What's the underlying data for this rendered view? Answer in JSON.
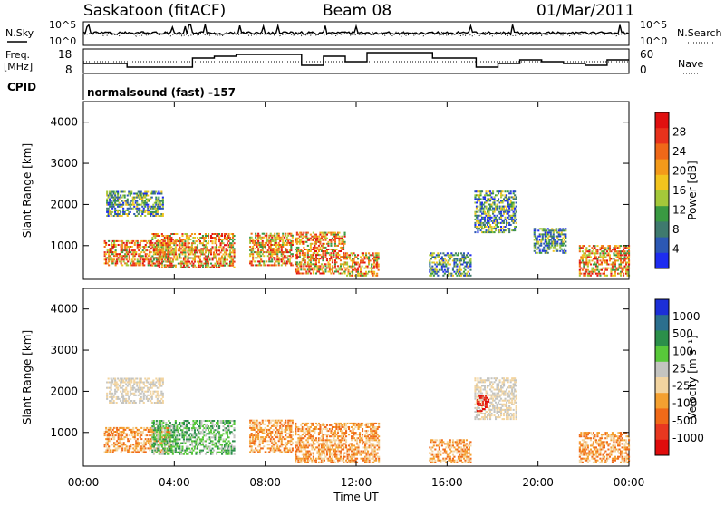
{
  "header": {
    "station": "Saskatoon (fitACF)",
    "beam": "Beam 08",
    "date": "01/Mar/2011"
  },
  "strip_labels": {
    "nsky": "N.Sky",
    "nsearch": "N.Search",
    "freq": "Freq.",
    "freq_unit": "[MHz]",
    "nave": "Nave",
    "cpid": "CPID",
    "cpid_value": "normalsound (fast) -157"
  },
  "strip_ticks": {
    "nsky_left": [
      "10^5",
      "10^0"
    ],
    "nsky_right": [
      "10^5",
      "10^0"
    ],
    "freq_left": [
      "18",
      "8"
    ],
    "nave_right": [
      "60",
      "0"
    ]
  },
  "chart_data": [
    {
      "type": "heatmap",
      "panel": "power",
      "ylabel": "Slant Range [km]",
      "ylim": [
        180,
        4500
      ],
      "yticks": [
        "1000",
        "2000",
        "3000",
        "4000"
      ],
      "xlim_hours": [
        0,
        24
      ],
      "colorbar": {
        "label": "Power [dB]",
        "ticks": [
          "4",
          "8",
          "12",
          "16",
          "20",
          "24",
          "28"
        ],
        "range": [
          0,
          30
        ],
        "colors": [
          "#1e2cf0",
          "#2c58b4",
          "#3f7a6e",
          "#3a9a42",
          "#a4c83a",
          "#f2c41e",
          "#f39a1a",
          "#ef6818",
          "#e8321c",
          "#e01010"
        ]
      },
      "echo_regions": [
        {
          "t": [
            0.9,
            3.8
          ],
          "r": [
            500,
            1100
          ],
          "level": "high"
        },
        {
          "t": [
            1.0,
            3.5
          ],
          "r": [
            1700,
            2300
          ],
          "level": "mid"
        },
        {
          "t": [
            3.0,
            6.6
          ],
          "r": [
            450,
            1300
          ],
          "level": "high"
        },
        {
          "t": [
            7.3,
            9.2
          ],
          "r": [
            500,
            1300
          ],
          "level": "high"
        },
        {
          "t": [
            9.3,
            11.5
          ],
          "r": [
            300,
            1300
          ],
          "level": "high"
        },
        {
          "t": [
            11.5,
            13.0
          ],
          "r": [
            250,
            800
          ],
          "level": "high"
        },
        {
          "t": [
            15.2,
            17.0
          ],
          "r": [
            250,
            800
          ],
          "level": "mid"
        },
        {
          "t": [
            17.2,
            19.0
          ],
          "r": [
            1300,
            2300
          ],
          "level": "mid"
        },
        {
          "t": [
            19.8,
            21.2
          ],
          "r": [
            800,
            1400
          ],
          "level": "mid"
        },
        {
          "t": [
            21.8,
            24.0
          ],
          "r": [
            250,
            1000
          ],
          "level": "high"
        }
      ]
    },
    {
      "type": "heatmap",
      "panel": "velocity",
      "ylabel": "Slant Range [km]",
      "ylim": [
        180,
        4500
      ],
      "yticks": [
        "1000",
        "2000",
        "3000",
        "4000"
      ],
      "xlim_hours": [
        0,
        24
      ],
      "xticks": [
        "00:00",
        "04:00",
        "08:00",
        "12:00",
        "16:00",
        "20:00",
        "00:00"
      ],
      "xlabel": "Time UT",
      "colorbar": {
        "label": "Velocity [m s⁻¹]",
        "ticks": [
          "1000",
          "500",
          "100",
          "25",
          "-25",
          "-100",
          "-500",
          "-1000"
        ],
        "colors": [
          "#1c2fd8",
          "#2b6f8e",
          "#2b8f4a",
          "#58c83a",
          "#c4c4c0",
          "#f2d4a0",
          "#f4a030",
          "#f06a18",
          "#e83820",
          "#e00c0c"
        ]
      },
      "echo_regions": [
        {
          "t": [
            0.9,
            3.8
          ],
          "r": [
            500,
            1100
          ],
          "level": "neg"
        },
        {
          "t": [
            1.0,
            3.5
          ],
          "r": [
            1700,
            2300
          ],
          "level": "zero"
        },
        {
          "t": [
            3.0,
            6.6
          ],
          "r": [
            450,
            1300
          ],
          "level": "pos"
        },
        {
          "t": [
            7.3,
            9.2
          ],
          "r": [
            500,
            1300
          ],
          "level": "neg"
        },
        {
          "t": [
            9.3,
            13.0
          ],
          "r": [
            250,
            1200
          ],
          "level": "neg"
        },
        {
          "t": [
            15.2,
            17.0
          ],
          "r": [
            250,
            800
          ],
          "level": "neg"
        },
        {
          "t": [
            17.2,
            19.0
          ],
          "r": [
            1300,
            2300
          ],
          "level": "zero"
        },
        {
          "t": [
            17.3,
            17.8
          ],
          "r": [
            1500,
            1900
          ],
          "level": "strongneg"
        },
        {
          "t": [
            21.8,
            24.0
          ],
          "r": [
            250,
            1000
          ],
          "level": "neg"
        }
      ]
    }
  ]
}
